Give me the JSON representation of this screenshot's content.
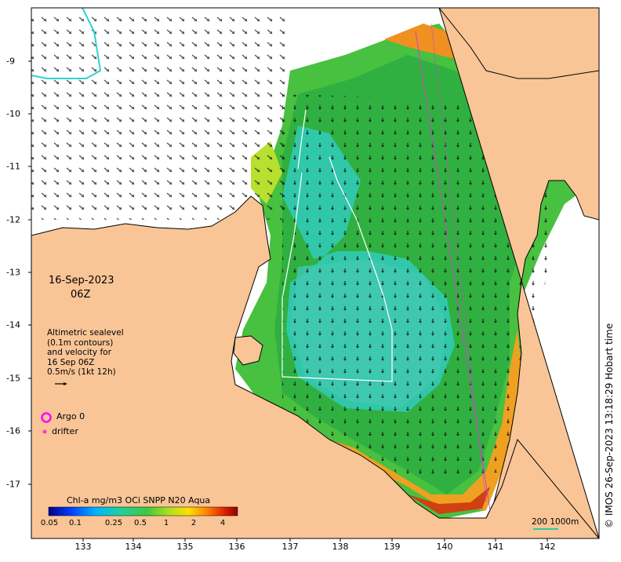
{
  "date": {
    "line1": "16-Sep-2023",
    "line2": "06Z"
  },
  "legend": {
    "line1": "Altimetric sealevel",
    "line2": "(0.1m contours)",
    "line3": "and velocity for",
    "line4": "16 Sep 06Z",
    "line5": "0.5m/s (1kt 12h)"
  },
  "markers": {
    "argo": "Argo 0",
    "drifter": "drifter"
  },
  "colorbar": {
    "title": "Chl-a mg/m3 OCi SNPP N20 Aqua",
    "ticks": [
      "0.05",
      "0.1",
      "0.25",
      "0.5",
      "1",
      "2",
      "4"
    ]
  },
  "scale": {
    "label": "200  1000m"
  },
  "credit": "© IMOS 26-Sep-2023 13:18:29 Hobart time",
  "axes": {
    "lon_ticks": [
      "133",
      "134",
      "135",
      "136",
      "137",
      "138",
      "139",
      "140",
      "141",
      "142"
    ],
    "lat_ticks": [
      "-9",
      "-10",
      "-11",
      "-12",
      "-13",
      "-14",
      "-15",
      "-16",
      "-17"
    ]
  },
  "colors": {
    "land": "#f9c597",
    "ocean_cyan": "#20c8b0",
    "chl_green": "#30b838",
    "contour": "#ffffff",
    "track": "#cc33cc"
  }
}
